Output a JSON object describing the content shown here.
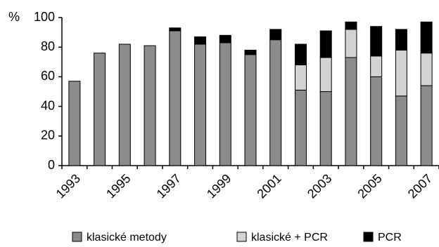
{
  "chart_data": {
    "type": "stacked_bar",
    "y_label": "%",
    "categories": [
      "1993",
      null,
      "1995",
      null,
      "1997",
      null,
      "1999",
      null,
      "2001",
      null,
      "2003",
      null,
      "2005",
      null,
      "2007"
    ],
    "series": [
      {
        "name": "klasické metody",
        "color": "#8c8c8c",
        "values": [
          57,
          76,
          82,
          81,
          91,
          82,
          83,
          75,
          85,
          51,
          50,
          73,
          60,
          47,
          54
        ]
      },
      {
        "name": "klasické + PCR",
        "color": "#d3d3d3",
        "values": [
          null,
          null,
          null,
          null,
          null,
          null,
          null,
          null,
          null,
          17,
          23,
          19,
          14,
          31,
          22
        ]
      },
      {
        "name": "PCR",
        "color": "#000000",
        "values": [
          null,
          null,
          null,
          null,
          2,
          5,
          5,
          3,
          7,
          14,
          18,
          5,
          20,
          14,
          21
        ]
      }
    ],
    "ylim": [
      0,
      100
    ],
    "yticks": [
      0,
      20,
      40,
      60,
      80,
      100
    ],
    "grid": false,
    "legend": "bottom"
  }
}
